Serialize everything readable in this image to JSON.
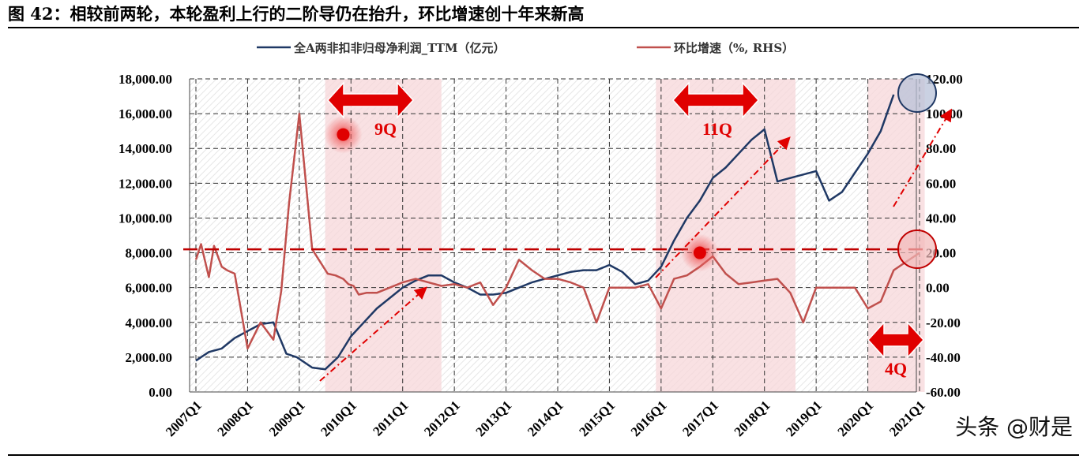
{
  "header": {
    "title": "图 42：相较前两轮，本轮盈利上行的二阶导仍在抬升，环比增速创十年来新高"
  },
  "watermark": "头条 @财是",
  "colors": {
    "series1": "#1f3864",
    "series2": "#c0504d",
    "shade": "#f7d7d9",
    "annotation": "#e00000"
  },
  "chart_data": {
    "type": "line",
    "x_tick_labels": [
      "2007Q1",
      "2008Q1",
      "2009Q1",
      "2010Q1",
      "2011Q1",
      "2012Q1",
      "2013Q1",
      "2014Q1",
      "2015Q1",
      "2016Q1",
      "2017Q1",
      "2018Q1",
      "2019Q1",
      "2020Q1",
      "2021Q1"
    ],
    "y_left": {
      "ticks": [
        "0.00",
        "2,000.00",
        "4,000.00",
        "6,000.00",
        "8,000.00",
        "10,000.00",
        "12,000.00",
        "14,000.00",
        "16,000.00",
        "18,000.00"
      ],
      "lim": [
        0,
        18000
      ]
    },
    "y_right": {
      "ticks": [
        "-60.00",
        "-40.00",
        "-20.00",
        "0.00",
        "20.00",
        "40.00",
        "60.00",
        "80.00",
        "100.00",
        "120.00"
      ],
      "lim": [
        -60,
        120
      ]
    },
    "grid": true,
    "legend": "top",
    "series": [
      {
        "name": "全A两非扣非归母净利润_TTM（亿元）",
        "axis": "left",
        "x": [
          2007.0,
          2007.25,
          2007.5,
          2007.75,
          2008.0,
          2008.25,
          2008.5,
          2008.75,
          2008.95,
          2009.25,
          2009.5,
          2009.75,
          2010.0,
          2010.25,
          2010.5,
          2010.75,
          2011.0,
          2011.25,
          2011.5,
          2011.75,
          2012.0,
          2012.25,
          2012.5,
          2012.75,
          2013.0,
          2013.25,
          2013.5,
          2013.75,
          2014.0,
          2014.25,
          2014.5,
          2014.75,
          2015.0,
          2015.25,
          2015.5,
          2015.75,
          2016.0,
          2016.25,
          2016.5,
          2016.75,
          2017.0,
          2017.25,
          2017.5,
          2017.75,
          2018.0,
          2018.25,
          2018.5,
          2018.75,
          2019.0,
          2019.25,
          2019.5,
          2019.75,
          2020.0,
          2020.25,
          2020.5,
          2020.75,
          2021.0
        ],
        "values": [
          1800,
          2300,
          2500,
          3100,
          3500,
          3900,
          4000,
          2200,
          2000,
          1400,
          1300,
          2000,
          3200,
          4000,
          4800,
          5400,
          6000,
          6400,
          6700,
          6700,
          6300,
          6000,
          5600,
          5600,
          5700,
          6000,
          6300,
          6500,
          6700,
          6900,
          7000,
          7000,
          7300,
          6900,
          6200,
          6400,
          7200,
          8700,
          10000,
          11000,
          12300,
          12900,
          13700,
          14500,
          15100,
          12100,
          12300,
          12500,
          12700,
          11000,
          11500,
          12600,
          13700,
          15000,
          17100,
          null,
          null
        ]
      },
      {
        "name": "环比增速（%, RHS）",
        "axis": "right",
        "x": [
          2007.0,
          2007.1,
          2007.25,
          2007.35,
          2007.5,
          2007.6,
          2007.75,
          2008.0,
          2008.25,
          2008.5,
          2008.65,
          2008.8,
          2009.0,
          2009.25,
          2009.4,
          2009.55,
          2009.7,
          2009.85,
          2009.95,
          2010.05,
          2010.15,
          2010.3,
          2010.5,
          2010.75,
          2011.0,
          2011.25,
          2011.5,
          2011.75,
          2012.0,
          2012.25,
          2012.5,
          2012.75,
          2013.0,
          2013.25,
          2013.5,
          2013.75,
          2014.0,
          2014.25,
          2014.5,
          2014.75,
          2015.0,
          2015.25,
          2015.5,
          2015.75,
          2016.0,
          2016.25,
          2016.5,
          2016.75,
          2017.0,
          2017.25,
          2017.5,
          2017.75,
          2018.0,
          2018.25,
          2018.5,
          2018.75,
          2019.0,
          2019.25,
          2019.5,
          2019.75,
          2020.0,
          2020.25,
          2020.5,
          2020.75,
          2021.0
        ],
        "values": [
          16,
          25,
          6,
          24,
          12,
          10,
          8,
          -35,
          -20,
          -30,
          -2,
          48,
          100,
          22,
          15,
          8,
          7,
          5,
          2,
          1,
          -4,
          -3,
          -3,
          0,
          3,
          5,
          3,
          1,
          2,
          0,
          3,
          -10,
          0,
          16,
          10,
          5,
          5,
          3,
          0,
          -20,
          0,
          0,
          0,
          2,
          -12,
          5,
          7,
          12,
          18,
          8,
          2,
          3,
          4,
          5,
          -3,
          -20,
          0,
          0,
          0,
          0,
          -12,
          -8,
          10,
          15,
          20
        ]
      }
    ],
    "annotations": [
      "9Q",
      "11Q",
      "4Q"
    ]
  }
}
